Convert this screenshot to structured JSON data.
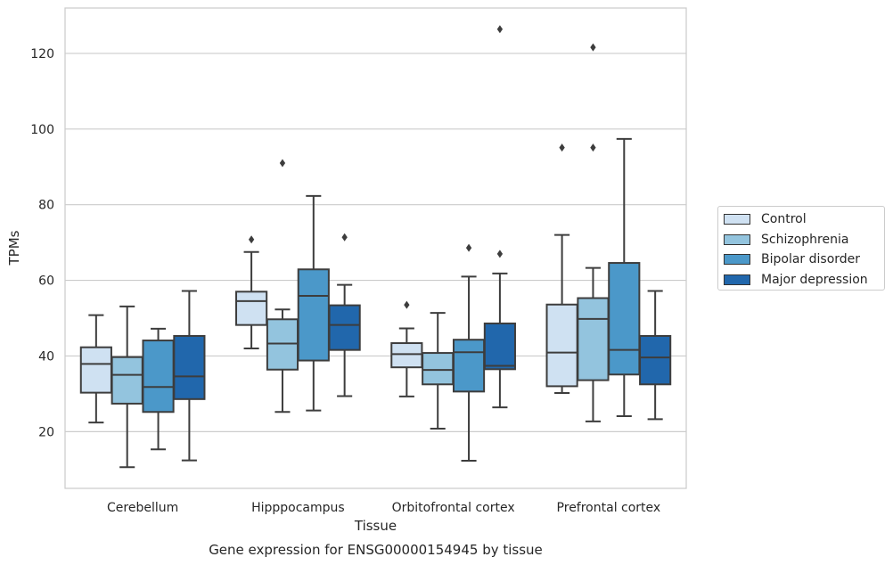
{
  "chart_data": {
    "type": "box",
    "title": "Gene expression for ENSG00000154945 by tissue",
    "xlabel": "Tissue",
    "ylabel": "TPMs",
    "ylim": [
      5,
      132
    ],
    "yticks": [
      20,
      40,
      60,
      80,
      100,
      120
    ],
    "grid": "horizontal",
    "legend_position": "right",
    "categories": [
      "Cerebellum",
      "Hipppocampus",
      "Orbitofrontal cortex",
      "Prefrontal cortex"
    ],
    "series": [
      {
        "name": "Control",
        "color": "#cfe1f2",
        "boxes": [
          {
            "whislo": 22.4,
            "q1": 30.3,
            "med": 37.9,
            "q3": 42.3,
            "whishi": 50.8,
            "fliers": []
          },
          {
            "whislo": 42.0,
            "q1": 48.2,
            "med": 54.5,
            "q3": 57.0,
            "whishi": 67.5,
            "fliers": [
              70.8
            ]
          },
          {
            "whislo": 29.3,
            "q1": 37.0,
            "med": 40.5,
            "q3": 43.4,
            "whishi": 47.3,
            "fliers": [
              53.5
            ]
          },
          {
            "whislo": 30.2,
            "q1": 32.0,
            "med": 40.9,
            "q3": 53.6,
            "whishi": 72.0,
            "fliers": [
              95.1
            ]
          }
        ]
      },
      {
        "name": "Schizophrenia",
        "color": "#93c4de",
        "boxes": [
          {
            "whislo": 10.6,
            "q1": 27.4,
            "med": 35.0,
            "q3": 39.7,
            "whishi": 53.1,
            "fliers": []
          },
          {
            "whislo": 25.2,
            "q1": 36.4,
            "med": 43.3,
            "q3": 49.7,
            "whishi": 52.3,
            "fliers": [
              91.0
            ]
          },
          {
            "whislo": 20.8,
            "q1": 32.5,
            "med": 36.3,
            "q3": 40.8,
            "whishi": 51.4,
            "fliers": []
          },
          {
            "whislo": 22.7,
            "q1": 33.6,
            "med": 49.8,
            "q3": 55.3,
            "whishi": 63.3,
            "fliers": [
              95.1,
              121.6
            ]
          }
        ]
      },
      {
        "name": "Bipolar disorder",
        "color": "#4b98c9",
        "boxes": [
          {
            "whislo": 15.3,
            "q1": 25.2,
            "med": 31.8,
            "q3": 44.1,
            "whishi": 47.2,
            "fliers": []
          },
          {
            "whislo": 25.6,
            "q1": 38.8,
            "med": 55.9,
            "q3": 62.9,
            "whishi": 82.3,
            "fliers": []
          },
          {
            "whislo": 12.3,
            "q1": 30.6,
            "med": 41.0,
            "q3": 44.3,
            "whishi": 61.0,
            "fliers": [
              68.6
            ]
          },
          {
            "whislo": 24.1,
            "q1": 35.1,
            "med": 41.6,
            "q3": 64.6,
            "whishi": 97.4,
            "fliers": []
          }
        ]
      },
      {
        "name": "Major depression",
        "color": "#2167ac",
        "boxes": [
          {
            "whislo": 12.4,
            "q1": 28.6,
            "med": 34.6,
            "q3": 45.3,
            "whishi": 57.2,
            "fliers": []
          },
          {
            "whislo": 29.4,
            "q1": 41.6,
            "med": 48.2,
            "q3": 53.4,
            "whishi": 58.8,
            "fliers": [
              71.4
            ]
          },
          {
            "whislo": 26.4,
            "q1": 36.5,
            "med": 37.4,
            "q3": 48.6,
            "whishi": 61.8,
            "fliers": [
              67.0,
              126.4
            ]
          },
          {
            "whislo": 23.3,
            "q1": 32.5,
            "med": 39.6,
            "q3": 45.3,
            "whishi": 57.2,
            "fliers": []
          }
        ]
      }
    ]
  }
}
